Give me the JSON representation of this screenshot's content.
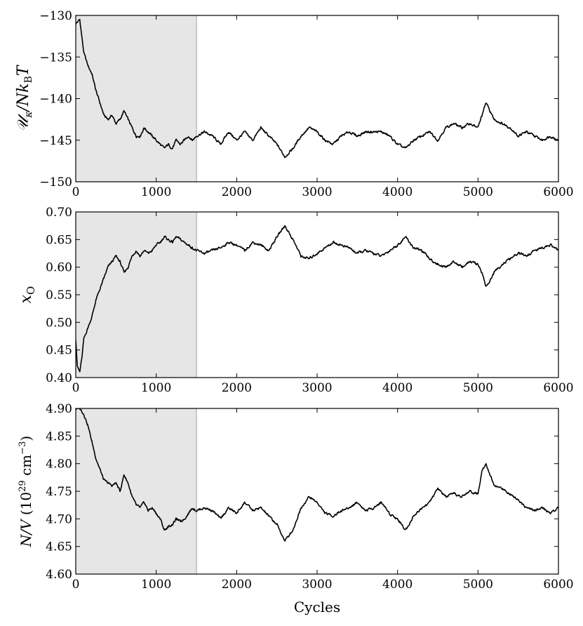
{
  "chart_data": [
    {
      "type": "line",
      "ylabel": "𝒰κ/NkBT",
      "ylabel_parts": {
        "main": "𝒰",
        "sub1": "κ",
        "mid": "/Nk",
        "sub2": "B",
        "end": "T"
      },
      "xlim": [
        0,
        6000
      ],
      "ylim": [
        -150,
        -130
      ],
      "xticks": [
        0,
        1000,
        2000,
        3000,
        4000,
        5000,
        6000
      ],
      "xtick_labels": [
        "0",
        "1000",
        "2000",
        "3000",
        "4000",
        "5000",
        "6000"
      ],
      "yticks": [
        -150,
        -145,
        -140,
        -135,
        -130
      ],
      "ytick_labels": [
        "−150",
        "−145",
        "−140",
        "−135",
        "−130"
      ],
      "shaded_region": [
        0,
        1500
      ],
      "series": [
        {
          "x": [
            0,
            50,
            100,
            150,
            200,
            250,
            300,
            350,
            400,
            450,
            500,
            550,
            600,
            650,
            700,
            750,
            800,
            850,
            900,
            950,
            1000,
            1050,
            1100,
            1150,
            1200,
            1250,
            1300,
            1350,
            1400,
            1450,
            1500,
            1600,
            1700,
            1800,
            1900,
            2000,
            2100,
            2200,
            2300,
            2400,
            2500,
            2600,
            2700,
            2800,
            2900,
            3000,
            3100,
            3200,
            3300,
            3400,
            3500,
            3600,
            3700,
            3800,
            3900,
            4000,
            4100,
            4200,
            4300,
            4400,
            4500,
            4600,
            4700,
            4800,
            4900,
            5000,
            5050,
            5100,
            5150,
            5200,
            5300,
            5400,
            5500,
            5600,
            5700,
            5800,
            5900,
            6000
          ],
          "y": [
            -131,
            -130.5,
            -134.5,
            -136,
            -137,
            -139,
            -140.5,
            -142,
            -142.5,
            -142,
            -143,
            -142.5,
            -141.5,
            -142.5,
            -143.5,
            -144.5,
            -144.5,
            -143.5,
            -144,
            -144.5,
            -145,
            -145.5,
            -146,
            -145.5,
            -146,
            -145,
            -145.5,
            -145,
            -144.5,
            -145,
            -144.5,
            -144,
            -144.5,
            -145.5,
            -144,
            -145,
            -144,
            -145,
            -143.5,
            -144.5,
            -145.5,
            -147,
            -146,
            -144.5,
            -143.5,
            -144,
            -145,
            -145.5,
            -144.5,
            -144,
            -144.5,
            -144,
            -144,
            -144,
            -144.5,
            -145.5,
            -146,
            -145,
            -144.5,
            -144,
            -145,
            -143.5,
            -143,
            -143.5,
            -143,
            -143.5,
            -142,
            -140.5,
            -141.5,
            -142.5,
            -143,
            -143.5,
            -144.5,
            -144,
            -144.5,
            -145,
            -144.5,
            -145
          ]
        }
      ]
    },
    {
      "type": "line",
      "ylabel": "xO",
      "ylabel_parts": {
        "main": "x",
        "sub": "O"
      },
      "xlim": [
        0,
        6000
      ],
      "ylim": [
        0.4,
        0.7
      ],
      "xticks": [
        0,
        1000,
        2000,
        3000,
        4000,
        5000,
        6000
      ],
      "xtick_labels": [
        "0",
        "1000",
        "2000",
        "3000",
        "4000",
        "5000",
        "6000"
      ],
      "yticks": [
        0.4,
        0.45,
        0.5,
        0.55,
        0.6,
        0.65,
        0.7
      ],
      "ytick_labels": [
        "0.40",
        "0.45",
        "0.50",
        "0.55",
        "0.60",
        "0.65",
        "0.70"
      ],
      "shaded_region": [
        0,
        1500
      ],
      "series": [
        {
          "x": [
            0,
            20,
            50,
            80,
            100,
            150,
            200,
            250,
            300,
            350,
            400,
            450,
            500,
            550,
            600,
            650,
            700,
            750,
            800,
            850,
            900,
            950,
            1000,
            1050,
            1100,
            1150,
            1200,
            1250,
            1300,
            1350,
            1400,
            1450,
            1500,
            1600,
            1700,
            1800,
            1900,
            2000,
            2100,
            2200,
            2300,
            2400,
            2500,
            2600,
            2700,
            2800,
            2900,
            3000,
            3100,
            3200,
            3300,
            3400,
            3500,
            3600,
            3700,
            3800,
            3900,
            4000,
            4100,
            4200,
            4300,
            4400,
            4500,
            4600,
            4700,
            4800,
            4900,
            5000,
            5050,
            5100,
            5150,
            5200,
            5300,
            5400,
            5500,
            5600,
            5700,
            5800,
            5900,
            6000
          ],
          "y": [
            0.47,
            0.42,
            0.41,
            0.44,
            0.47,
            0.49,
            0.51,
            0.54,
            0.56,
            0.58,
            0.6,
            0.61,
            0.62,
            0.61,
            0.59,
            0.6,
            0.62,
            0.63,
            0.62,
            0.63,
            0.625,
            0.63,
            0.64,
            0.645,
            0.655,
            0.65,
            0.645,
            0.655,
            0.65,
            0.645,
            0.64,
            0.635,
            0.63,
            0.625,
            0.63,
            0.635,
            0.645,
            0.64,
            0.63,
            0.645,
            0.64,
            0.63,
            0.655,
            0.675,
            0.65,
            0.62,
            0.615,
            0.625,
            0.635,
            0.645,
            0.64,
            0.635,
            0.625,
            0.63,
            0.625,
            0.62,
            0.63,
            0.64,
            0.655,
            0.635,
            0.63,
            0.615,
            0.605,
            0.6,
            0.61,
            0.6,
            0.61,
            0.605,
            0.59,
            0.565,
            0.575,
            0.59,
            0.605,
            0.615,
            0.625,
            0.62,
            0.63,
            0.635,
            0.64,
            0.63
          ]
        }
      ]
    },
    {
      "type": "line",
      "ylabel": "N/V (10^29 cm^−3)",
      "ylabel_parts": {
        "main": "N/V",
        "open": " (10",
        "exp1": "29",
        "unit": " cm",
        "exp2": "−3",
        "close": ")"
      },
      "xlabel": "Cycles",
      "xlim": [
        0,
        6000
      ],
      "ylim": [
        4.6,
        4.9
      ],
      "xticks": [
        0,
        1000,
        2000,
        3000,
        4000,
        5000,
        6000
      ],
      "xtick_labels": [
        "0",
        "1000",
        "2000",
        "3000",
        "4000",
        "5000",
        "6000"
      ],
      "yticks": [
        4.6,
        4.65,
        4.7,
        4.75,
        4.8,
        4.85,
        4.9
      ],
      "ytick_labels": [
        "4.60",
        "4.65",
        "4.70",
        "4.75",
        "4.80",
        "4.85",
        "4.90"
      ],
      "shaded_region": [
        0,
        1500
      ],
      "series": [
        {
          "x": [
            0,
            50,
            100,
            150,
            200,
            250,
            300,
            350,
            400,
            450,
            500,
            550,
            600,
            650,
            700,
            750,
            800,
            850,
            900,
            950,
            1000,
            1050,
            1100,
            1150,
            1200,
            1250,
            1300,
            1350,
            1400,
            1450,
            1500,
            1600,
            1700,
            1800,
            1900,
            2000,
            2100,
            2200,
            2300,
            2400,
            2500,
            2600,
            2700,
            2800,
            2900,
            3000,
            3100,
            3200,
            3300,
            3400,
            3500,
            3600,
            3700,
            3800,
            3900,
            4000,
            4100,
            4200,
            4300,
            4400,
            4500,
            4600,
            4700,
            4800,
            4900,
            5000,
            5050,
            5100,
            5150,
            5200,
            5300,
            5400,
            5500,
            5600,
            5700,
            5800,
            5900,
            6000
          ],
          "y": [
            4.9,
            4.9,
            4.89,
            4.87,
            4.84,
            4.81,
            4.79,
            4.77,
            4.765,
            4.76,
            4.765,
            4.75,
            4.78,
            4.765,
            4.74,
            4.725,
            4.72,
            4.73,
            4.715,
            4.72,
            4.71,
            4.7,
            4.68,
            4.685,
            4.69,
            4.7,
            4.695,
            4.7,
            4.71,
            4.72,
            4.715,
            4.72,
            4.715,
            4.7,
            4.72,
            4.71,
            4.73,
            4.715,
            4.72,
            4.705,
            4.69,
            4.66,
            4.68,
            4.72,
            4.74,
            4.73,
            4.71,
            4.705,
            4.715,
            4.72,
            4.73,
            4.715,
            4.72,
            4.73,
            4.71,
            4.7,
            4.68,
            4.705,
            4.72,
            4.73,
            4.755,
            4.74,
            4.745,
            4.74,
            4.75,
            4.745,
            4.79,
            4.8,
            4.78,
            4.76,
            4.755,
            4.745,
            4.735,
            4.72,
            4.715,
            4.72,
            4.71,
            4.72
          ]
        }
      ]
    }
  ]
}
